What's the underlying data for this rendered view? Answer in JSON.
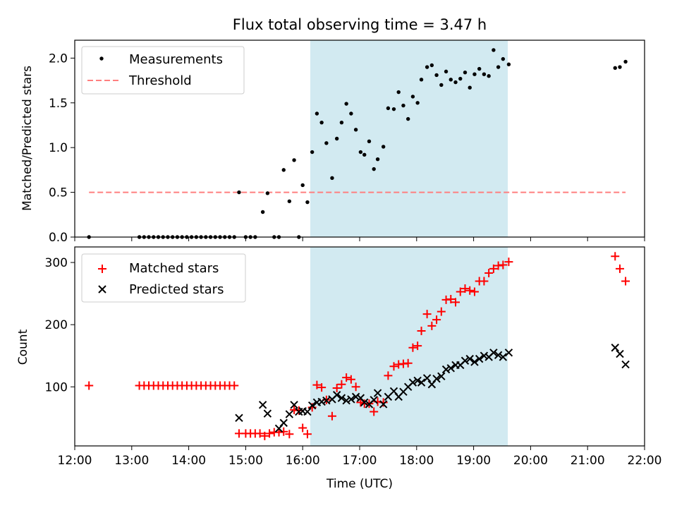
{
  "figure": {
    "title": "Flux total observing time = 3.47 h",
    "xlabel": "Time (UTC)",
    "xticks": [
      "12:00",
      "13:00",
      "14:00",
      "15:00",
      "16:00",
      "17:00",
      "18:00",
      "19:00",
      "20:00",
      "21:00",
      "22:00"
    ]
  },
  "chart_data": [
    {
      "type": "scatter",
      "ylabel": "Matched/Predicted stars",
      "xlim": [
        "12:00",
        "22:00"
      ],
      "ylim": [
        0,
        2.2
      ],
      "yticks": [
        "0.0",
        "0.5",
        "1.0",
        "1.5",
        "2.0"
      ],
      "shaded_interval": [
        "16:08",
        "19:36"
      ],
      "shade_color": "#add8e6",
      "legend": {
        "placement": "upper-left",
        "entries": [
          "Measurements",
          "Threshold"
        ]
      },
      "threshold": {
        "name": "Threshold",
        "value": 0.5,
        "x_range": [
          "12:15",
          "21:40"
        ],
        "color": "#ff7f7f",
        "style": "dashed"
      },
      "series": [
        {
          "name": "Measurements",
          "marker": "dot",
          "color": "#000000",
          "points": [
            [
              "12:15",
              0.0
            ],
            [
              "13:08",
              0.0
            ],
            [
              "13:13",
              0.0
            ],
            [
              "13:18",
              0.0
            ],
            [
              "13:23",
              0.0
            ],
            [
              "13:28",
              0.0
            ],
            [
              "13:33",
              0.0
            ],
            [
              "13:38",
              0.0
            ],
            [
              "13:43",
              0.0
            ],
            [
              "13:48",
              0.0
            ],
            [
              "13:53",
              0.0
            ],
            [
              "13:58",
              0.0
            ],
            [
              "14:03",
              0.0
            ],
            [
              "14:08",
              0.0
            ],
            [
              "14:13",
              0.0
            ],
            [
              "14:18",
              0.0
            ],
            [
              "14:23",
              0.0
            ],
            [
              "14:28",
              0.0
            ],
            [
              "14:33",
              0.0
            ],
            [
              "14:38",
              0.0
            ],
            [
              "14:43",
              0.0
            ],
            [
              "14:48",
              0.0
            ],
            [
              "14:53",
              0.5
            ],
            [
              "15:00",
              0.0
            ],
            [
              "15:05",
              0.0
            ],
            [
              "15:10",
              0.0
            ],
            [
              "15:18",
              0.28
            ],
            [
              "15:23",
              0.49
            ],
            [
              "15:30",
              0.0
            ],
            [
              "15:35",
              0.0
            ],
            [
              "15:40",
              0.75
            ],
            [
              "15:46",
              0.4
            ],
            [
              "15:51",
              0.86
            ],
            [
              "15:56",
              0.0
            ],
            [
              "16:00",
              0.58
            ],
            [
              "16:05",
              0.39
            ],
            [
              "16:10",
              0.95
            ],
            [
              "16:15",
              1.38
            ],
            [
              "16:20",
              1.28
            ],
            [
              "16:25",
              1.05
            ],
            [
              "16:31",
              0.66
            ],
            [
              "16:36",
              1.1
            ],
            [
              "16:41",
              1.28
            ],
            [
              "16:46",
              1.49
            ],
            [
              "16:51",
              1.38
            ],
            [
              "16:56",
              1.2
            ],
            [
              "17:01",
              0.95
            ],
            [
              "17:05",
              0.92
            ],
            [
              "17:10",
              1.07
            ],
            [
              "17:15",
              0.76
            ],
            [
              "17:19",
              0.87
            ],
            [
              "17:25",
              1.01
            ],
            [
              "17:30",
              1.44
            ],
            [
              "17:36",
              1.43
            ],
            [
              "17:41",
              1.62
            ],
            [
              "17:46",
              1.47
            ],
            [
              "17:51",
              1.32
            ],
            [
              "17:56",
              1.57
            ],
            [
              "18:01",
              1.5
            ],
            [
              "18:05",
              1.76
            ],
            [
              "18:11",
              1.9
            ],
            [
              "18:16",
              1.92
            ],
            [
              "18:21",
              1.81
            ],
            [
              "18:26",
              1.7
            ],
            [
              "18:31",
              1.85
            ],
            [
              "18:36",
              1.76
            ],
            [
              "18:41",
              1.73
            ],
            [
              "18:46",
              1.77
            ],
            [
              "18:51",
              1.84
            ],
            [
              "18:56",
              1.67
            ],
            [
              "19:01",
              1.82
            ],
            [
              "19:06",
              1.88
            ],
            [
              "19:11",
              1.82
            ],
            [
              "19:16",
              1.8
            ],
            [
              "19:21",
              2.09
            ],
            [
              "19:26",
              1.9
            ],
            [
              "19:31",
              1.99
            ],
            [
              "19:37",
              1.93
            ],
            [
              "21:29",
              1.89
            ],
            [
              "21:34",
              1.9
            ],
            [
              "21:40",
              1.96
            ]
          ]
        }
      ]
    },
    {
      "type": "scatter",
      "ylabel": "Count",
      "xlim": [
        "12:00",
        "22:00"
      ],
      "ylim": [
        5,
        325
      ],
      "yticks": [
        "100",
        "200",
        "300"
      ],
      "shaded_interval": [
        "16:08",
        "19:36"
      ],
      "shade_color": "#add8e6",
      "legend": {
        "placement": "upper-left",
        "entries": [
          "Matched stars",
          "Predicted stars"
        ]
      },
      "series": [
        {
          "name": "Matched stars",
          "marker": "plus",
          "color": "#ff0000",
          "points": [
            [
              "12:15",
              102
            ],
            [
              "13:08",
              102
            ],
            [
              "13:13",
              102
            ],
            [
              "13:18",
              102
            ],
            [
              "13:23",
              102
            ],
            [
              "13:28",
              102
            ],
            [
              "13:33",
              102
            ],
            [
              "13:38",
              102
            ],
            [
              "13:43",
              102
            ],
            [
              "13:48",
              102
            ],
            [
              "13:53",
              102
            ],
            [
              "13:58",
              102
            ],
            [
              "14:03",
              102
            ],
            [
              "14:08",
              102
            ],
            [
              "14:13",
              102
            ],
            [
              "14:18",
              102
            ],
            [
              "14:23",
              102
            ],
            [
              "14:28",
              102
            ],
            [
              "14:33",
              102
            ],
            [
              "14:38",
              102
            ],
            [
              "14:43",
              102
            ],
            [
              "14:48",
              102
            ],
            [
              "14:53",
              25
            ],
            [
              "15:00",
              25
            ],
            [
              "15:05",
              25
            ],
            [
              "15:10",
              25
            ],
            [
              "15:15",
              25
            ],
            [
              "15:20",
              21
            ],
            [
              "15:25",
              25
            ],
            [
              "15:30",
              27
            ],
            [
              "15:35",
              27
            ],
            [
              "15:40",
              28
            ],
            [
              "15:46",
              24
            ],
            [
              "15:51",
              63
            ],
            [
              "15:56",
              62
            ],
            [
              "16:00",
              34
            ],
            [
              "16:05",
              24
            ],
            [
              "16:10",
              67
            ],
            [
              "16:15",
              103
            ],
            [
              "16:20",
              99
            ],
            [
              "16:25",
              79
            ],
            [
              "16:31",
              53
            ],
            [
              "16:36",
              98
            ],
            [
              "16:41",
              104
            ],
            [
              "16:46",
              115
            ],
            [
              "16:51",
              112
            ],
            [
              "16:56",
              100
            ],
            [
              "17:01",
              75
            ],
            [
              "17:05",
              73
            ],
            [
              "17:10",
              73
            ],
            [
              "17:15",
              60
            ],
            [
              "17:19",
              76
            ],
            [
              "17:25",
              75
            ],
            [
              "17:30",
              118
            ],
            [
              "17:36",
              133
            ],
            [
              "17:41",
              136
            ],
            [
              "17:46",
              137
            ],
            [
              "17:51",
              138
            ],
            [
              "17:56",
              163
            ],
            [
              "18:01",
              166
            ],
            [
              "18:05",
              190
            ],
            [
              "18:11",
              217
            ],
            [
              "18:16",
              198
            ],
            [
              "18:21",
              208
            ],
            [
              "18:26",
              221
            ],
            [
              "18:31",
              240
            ],
            [
              "18:36",
              241
            ],
            [
              "18:41",
              236
            ],
            [
              "18:46",
              253
            ],
            [
              "18:51",
              258
            ],
            [
              "18:56",
              255
            ],
            [
              "19:01",
              253
            ],
            [
              "19:06",
              270
            ],
            [
              "19:11",
              270
            ],
            [
              "19:16",
              283
            ],
            [
              "19:21",
              290
            ],
            [
              "19:26",
              295
            ],
            [
              "19:31",
              296
            ],
            [
              "19:37",
              301
            ],
            [
              "21:29",
              310
            ],
            [
              "21:34",
              290
            ],
            [
              "21:40",
              270
            ]
          ]
        },
        {
          "name": "Predicted stars",
          "marker": "x",
          "color": "#000000",
          "points": [
            [
              "14:53",
              50
            ],
            [
              "15:18",
              71
            ],
            [
              "15:23",
              57
            ],
            [
              "15:35",
              33
            ],
            [
              "15:40",
              42
            ],
            [
              "15:46",
              56
            ],
            [
              "15:51",
              71
            ],
            [
              "15:56",
              60
            ],
            [
              "16:00",
              61
            ],
            [
              "16:05",
              60
            ],
            [
              "16:10",
              70
            ],
            [
              "16:15",
              75
            ],
            [
              "16:20",
              76
            ],
            [
              "16:25",
              78
            ],
            [
              "16:31",
              80
            ],
            [
              "16:36",
              87
            ],
            [
              "16:41",
              82
            ],
            [
              "16:46",
              78
            ],
            [
              "16:51",
              80
            ],
            [
              "16:56",
              84
            ],
            [
              "17:01",
              82
            ],
            [
              "17:05",
              75
            ],
            [
              "17:10",
              72
            ],
            [
              "17:15",
              79
            ],
            [
              "17:19",
              90
            ],
            [
              "17:25",
              72
            ],
            [
              "17:30",
              84
            ],
            [
              "17:36",
              93
            ],
            [
              "17:41",
              84
            ],
            [
              "17:46",
              92
            ],
            [
              "17:51",
              100
            ],
            [
              "17:56",
              107
            ],
            [
              "18:01",
              110
            ],
            [
              "18:05",
              107
            ],
            [
              "18:11",
              114
            ],
            [
              "18:16",
              104
            ],
            [
              "18:21",
              113
            ],
            [
              "18:26",
              117
            ],
            [
              "18:31",
              128
            ],
            [
              "18:36",
              130
            ],
            [
              "18:41",
              135
            ],
            [
              "18:46",
              135
            ],
            [
              "18:51",
              142
            ],
            [
              "18:56",
              145
            ],
            [
              "19:01",
              140
            ],
            [
              "19:06",
              145
            ],
            [
              "19:11",
              150
            ],
            [
              "19:16",
              148
            ],
            [
              "19:21",
              155
            ],
            [
              "19:26",
              151
            ],
            [
              "19:31",
              148
            ],
            [
              "19:37",
              155
            ],
            [
              "21:29",
              163
            ],
            [
              "21:34",
              153
            ],
            [
              "21:40",
              136
            ]
          ]
        }
      ]
    }
  ]
}
